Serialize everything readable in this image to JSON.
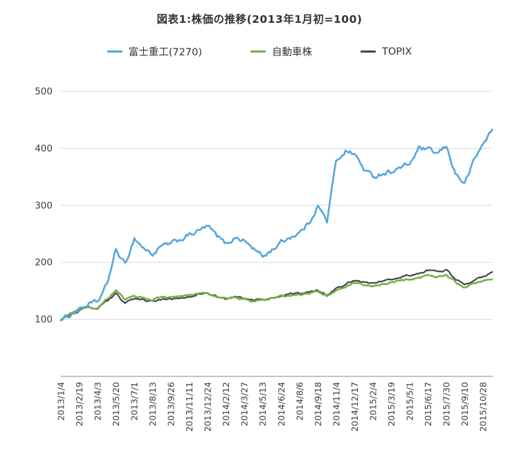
{
  "chart_data": {
    "type": "line",
    "title": "図表1:株価の推移(2013年1月初=100)",
    "ylim": [
      0,
      500
    ],
    "y_ticks": [
      100,
      200,
      300,
      400,
      500
    ],
    "grid": "horizontal",
    "legend_position": "top",
    "grid_color": "#d9d9d9",
    "axis_color": "#a0a0a0",
    "text_color": "#3d3d3d",
    "x_tick_labels": [
      "2013/1/4",
      "2013/2/19",
      "2013/4/3",
      "2013/5/20",
      "2013/7/1",
      "2013/8/13",
      "2013/9/26",
      "2013/11/11",
      "2013/12/24",
      "2014/2/12",
      "2014/3/27",
      "2014/5/13",
      "2014/6/24",
      "2014/8/6",
      "2014/9/18",
      "2014/11/4",
      "2014/12/17",
      "2015/2/4",
      "2015/3/19",
      "2015/5/1",
      "2015/6/17",
      "2015/7/30",
      "2015/9/10",
      "2015/10/28"
    ],
    "series": [
      {
        "name": "富士重工(7270)",
        "key": "fuji-heavy",
        "color": "#55a5de",
        "width": 2.6,
        "jitter": 6,
        "values": [
          98,
          108,
          118,
          126,
          130,
          160,
          222,
          195,
          243,
          225,
          214,
          228,
          232,
          240,
          248,
          255,
          263,
          246,
          232,
          244,
          238,
          224,
          210,
          222,
          235,
          245,
          252,
          268,
          300,
          272,
          378,
          396,
          390,
          364,
          350,
          356,
          360,
          366,
          372,
          400,
          397,
          390,
          403,
          356,
          338,
          378,
          408,
          433
        ]
      },
      {
        "name": "自動車株",
        "key": "auto-stocks",
        "color": "#76b043",
        "width": 2.6,
        "jitter": 2.5,
        "values": [
          99,
          110,
          118,
          122,
          118,
          135,
          150,
          133,
          140,
          138,
          135,
          140,
          138,
          140,
          142,
          145,
          145,
          140,
          135,
          138,
          136,
          132,
          133,
          136,
          140,
          142,
          143,
          145,
          150,
          140,
          152,
          158,
          164,
          160,
          158,
          162,
          165,
          168,
          170,
          172,
          178,
          175,
          178,
          165,
          155,
          162,
          166,
          170
        ]
      },
      {
        "name": "TOPIX",
        "key": "topix",
        "color": "#3f4750",
        "width": 2.2,
        "jitter": 2.5,
        "values": [
          99,
          108,
          116,
          120,
          118,
          132,
          145,
          128,
          136,
          134,
          131,
          136,
          135,
          138,
          140,
          144,
          146,
          140,
          136,
          140,
          138,
          133,
          134,
          138,
          142,
          145,
          146,
          148,
          152,
          142,
          155,
          162,
          168,
          164,
          163,
          168,
          172,
          175,
          177,
          180,
          186,
          183,
          186,
          170,
          160,
          168,
          176,
          183
        ]
      }
    ]
  }
}
